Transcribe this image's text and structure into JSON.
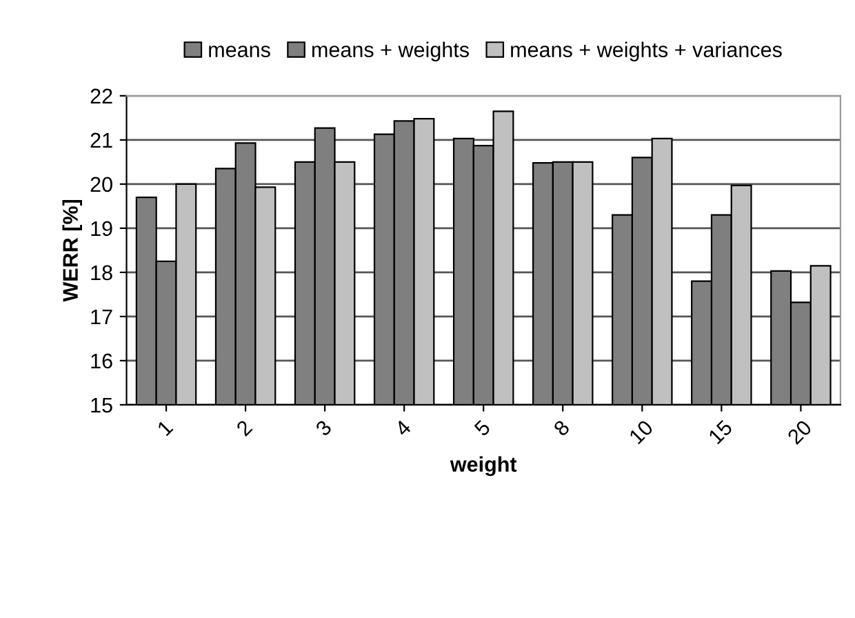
{
  "chart_data": {
    "type": "bar",
    "xlabel": "weight",
    "ylabel": "WERR [%]",
    "categories": [
      "1",
      "2",
      "3",
      "4",
      "5",
      "8",
      "10",
      "15",
      "20"
    ],
    "series": [
      {
        "name": "means",
        "color": "#808080",
        "values": [
          19.7,
          20.35,
          20.5,
          21.13,
          21.03,
          20.48,
          19.3,
          17.8,
          18.03
        ]
      },
      {
        "name": "means + weights",
        "color": "#7f7f7f",
        "values": [
          18.25,
          20.93,
          21.27,
          21.43,
          20.87,
          20.5,
          20.6,
          19.3,
          17.32
        ]
      },
      {
        "name": "means + weights + variances",
        "color": "#c0c0c0",
        "values": [
          20.0,
          19.93,
          20.5,
          21.48,
          21.65,
          20.5,
          21.03,
          19.97,
          18.15
        ]
      }
    ],
    "ylim": [
      15,
      22
    ],
    "yticks": [
      15,
      16,
      17,
      18,
      19,
      20,
      21,
      22
    ],
    "grid": "y",
    "legend": "top"
  }
}
